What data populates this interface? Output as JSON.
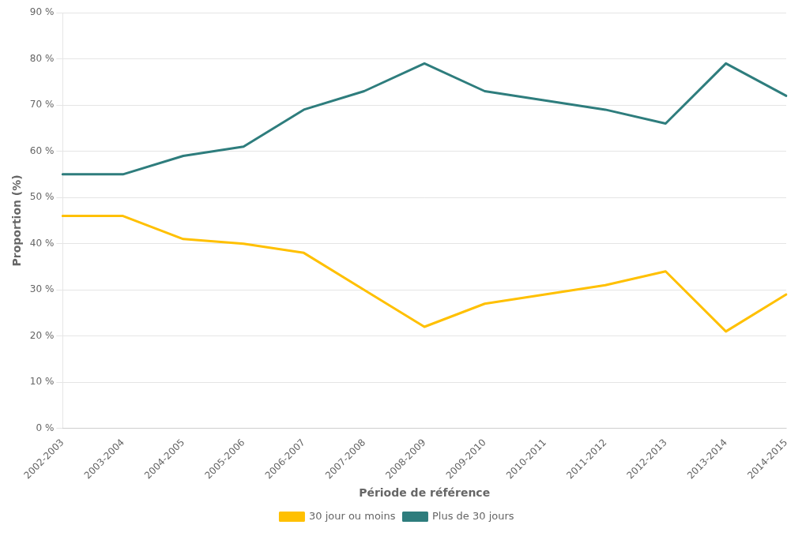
{
  "chart_data": {
    "type": "line",
    "categories": [
      "2002-2003",
      "2003-2004",
      "2004-2005",
      "2005-2006",
      "2006-2007",
      "2007-2008",
      "2008-2009",
      "2009-2010",
      "2010-2011",
      "2011-2012",
      "2012-2013",
      "2013-2014",
      "2014-2015"
    ],
    "series": [
      {
        "name": "30 jour ou moins",
        "color": "#FFC000",
        "values": [
          46,
          46,
          41,
          40,
          38,
          30,
          22,
          27,
          29,
          31,
          34,
          21,
          29
        ]
      },
      {
        "name": "Plus de 30 jours",
        "color": "#2E7D7D",
        "values": [
          55,
          55,
          59,
          61,
          69,
          73,
          79,
          73,
          71,
          69,
          66,
          79,
          72
        ]
      }
    ],
    "x_label": "Période de référence",
    "y_label": "Proportion (%)",
    "ylim": [
      0,
      90
    ],
    "yticks": [
      {
        "value": 0,
        "label": "0 %"
      },
      {
        "value": 10,
        "label": "10 %"
      },
      {
        "value": 20,
        "label": "20 %"
      },
      {
        "value": 30,
        "label": "30 %"
      },
      {
        "value": 40,
        "label": "40 %"
      },
      {
        "value": 50,
        "label": "50 %"
      },
      {
        "value": 60,
        "label": "60 %"
      },
      {
        "value": 70,
        "label": "70 %"
      },
      {
        "value": 80,
        "label": "80 %"
      },
      {
        "value": 90,
        "label": "90 %"
      }
    ],
    "grid": true,
    "legend": "bottom"
  }
}
